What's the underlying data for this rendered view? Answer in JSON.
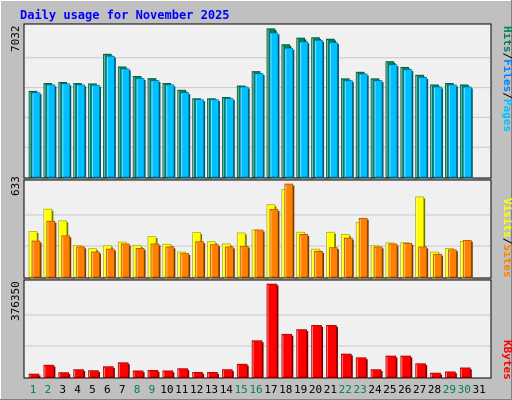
{
  "chart_data": [
    {
      "type": "bar",
      "title": "Daily usage for November 2025",
      "categories": [
        "1",
        "2",
        "3",
        "4",
        "5",
        "6",
        "7",
        "8",
        "9",
        "10",
        "11",
        "12",
        "13",
        "14",
        "15",
        "16",
        "17",
        "18",
        "19",
        "20",
        "21",
        "22",
        "23",
        "24",
        "25",
        "26",
        "27",
        "28",
        "29",
        "30",
        "31"
      ],
      "weekend_days": [
        "1",
        "2",
        "8",
        "9",
        "15",
        "16",
        "22",
        "23",
        "29",
        "30"
      ],
      "ylim": [
        0,
        7032
      ],
      "y_tick_label": "7032",
      "legend": [
        "Pages",
        "Files",
        "Hits"
      ],
      "legend_separator": "/",
      "series": [
        {
          "name": "Hits",
          "color": "#00805c",
          "values": [
            4050,
            4420,
            4470,
            4420,
            4400,
            5800,
            5200,
            4750,
            4650,
            4420,
            4100,
            3700,
            3700,
            3760,
            4300,
            4980,
            7000,
            6250,
            6560,
            6580,
            6510,
            4640,
            4950,
            4640,
            5450,
            5180,
            4810,
            4350,
            4420,
            4350,
            0
          ]
        },
        {
          "name": "Files",
          "color": "#00c0ff",
          "values": [
            3980,
            4350,
            4400,
            4350,
            4330,
            5700,
            5100,
            4650,
            4550,
            4350,
            3980,
            3650,
            3650,
            3700,
            4250,
            4880,
            6800,
            6080,
            6380,
            6450,
            6350,
            4550,
            4860,
            4550,
            5300,
            5070,
            4700,
            4250,
            4350,
            4250,
            0
          ]
        },
        {
          "name": "Pages",
          "color": "#0080ff",
          "values": [
            0,
            0,
            0,
            0,
            0,
            0,
            0,
            0,
            0,
            0,
            0,
            0,
            0,
            0,
            0,
            0,
            0,
            0,
            0,
            0,
            0,
            0,
            0,
            0,
            0,
            0,
            0,
            0,
            0,
            0,
            0
          ]
        }
      ]
    },
    {
      "type": "bar",
      "ylim": [
        0,
        633
      ],
      "y_tick_label": "633",
      "legend": [
        "Sites",
        "Visits"
      ],
      "legend_separator": "/",
      "series": [
        {
          "name": "Visits",
          "color": "#ffff00",
          "values": [
            310,
            462,
            382,
            215,
            193,
            213,
            238,
            215,
            275,
            223,
            170,
            303,
            240,
            225,
            300,
            320,
            492,
            595,
            305,
            190,
            305,
            290,
            372,
            213,
            232,
            233,
            545,
            170,
            195,
            243,
            0
          ]
        },
        {
          "name": "Sites",
          "color": "#ff8000",
          "values": [
            245,
            380,
            280,
            205,
            170,
            190,
            225,
            195,
            225,
            205,
            160,
            240,
            220,
            205,
            210,
            320,
            460,
            633,
            290,
            175,
            200,
            265,
            400,
            205,
            225,
            230,
            205,
            155,
            185,
            250,
            0
          ]
        }
      ]
    },
    {
      "type": "bar",
      "ylim": [
        0,
        376350
      ],
      "y_tick_label": "376350",
      "legend": [
        "KBytes"
      ],
      "series": [
        {
          "name": "KBytes",
          "color": "#ff0000",
          "values": [
            12000,
            48000,
            18000,
            30000,
            26000,
            42000,
            58000,
            25000,
            27000,
            25000,
            34000,
            19000,
            19000,
            30000,
            52000,
            147000,
            376350,
            173000,
            192000,
            209000,
            209000,
            93000,
            78000,
            30000,
            85000,
            85000,
            54000,
            16000,
            21000,
            37000,
            0
          ]
        }
      ]
    }
  ]
}
